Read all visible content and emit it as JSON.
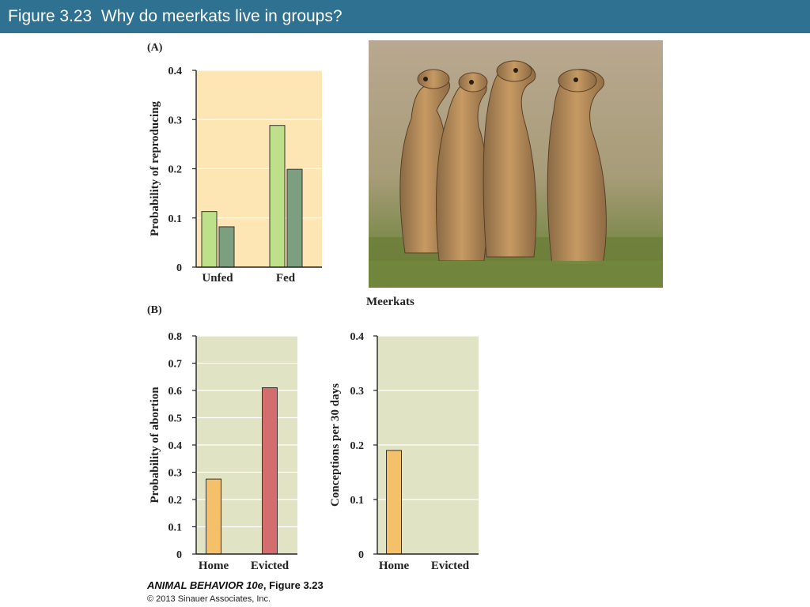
{
  "slide": {
    "title": "Figure 3.23  Why do meerkats live in groups?"
  },
  "panels": {
    "a_label": "(A)",
    "b_label": "(B)"
  },
  "photo": {
    "caption": "Meerkats"
  },
  "credit": {
    "book": "ANIMAL BEHAVIOR 10e",
    "figure": ", Figure 3.23",
    "copyright": "© 2013 Sinauer Associates, Inc."
  },
  "colors": {
    "title_bar": "#2e7191",
    "panel_a_bg": "#fde6b3",
    "panel_b_bg": "#e0e3c4",
    "light_green": "#bfe08a",
    "dark_green": "#7c9f82",
    "orange": "#f5c06a",
    "red": "#d46e6e"
  },
  "chart_data": [
    {
      "id": "A",
      "type": "bar",
      "categories": [
        "Unfed",
        "Fed"
      ],
      "series": [
        {
          "values": [
            0.113,
            0.288
          ],
          "color": "#bfe08a"
        },
        {
          "values": [
            0.082,
            0.199
          ],
          "color": "#7c9f82"
        }
      ],
      "ylabel": "Probability of reproducing",
      "ylim": [
        0,
        0.4
      ],
      "yticks": [
        "0",
        "0.1",
        "0.2",
        "0.3",
        "0.4"
      ],
      "grid": true
    },
    {
      "id": "B1",
      "type": "bar",
      "categories": [
        "Home",
        "Evicted"
      ],
      "values": [
        0.275,
        0.61
      ],
      "colors": [
        "#f5c06a",
        "#d46e6e"
      ],
      "ylabel": "Probability of abortion",
      "ylim": [
        0,
        0.8
      ],
      "yticks": [
        "0",
        "0.1",
        "0.2",
        "0.3",
        "0.4",
        "0.5",
        "0.6",
        "0.7",
        "0.8"
      ],
      "grid": true
    },
    {
      "id": "B2",
      "type": "bar",
      "categories": [
        "Home",
        "Evicted"
      ],
      "values": [
        0.19,
        0
      ],
      "colors": [
        "#f5c06a",
        "#f5c06a"
      ],
      "ylabel": "Conceptions per 30 days",
      "ylim": [
        0,
        0.4
      ],
      "yticks": [
        "0",
        "0.1",
        "0.2",
        "0.3",
        "0.4"
      ],
      "grid": true
    }
  ]
}
